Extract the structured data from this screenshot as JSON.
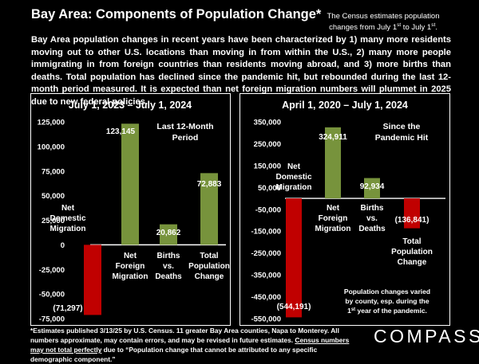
{
  "title": "Bay Area:  Components of Population Change*",
  "top_note": {
    "line1": "The Census estimates population",
    "line2_a": "changes from July 1",
    "sup_a": "st",
    "line2_b": " to July 1",
    "sup_b": "st",
    "line2_c": "."
  },
  "intro": "Bay Area population changes in recent years have been characterized by 1) many more residents moving out to other U.S. locations than moving in from within the U.S., 2) many more people immigrating in from foreign countries than residents moving abroad, and 3) more births than deaths. Total population has declined since the pandemic hit, but rebounded during the last 12-month period measured.  It is expected than net foreign migration numbers will plummet in 2025 due to new federal policies.",
  "chart_data": [
    {
      "type": "bar",
      "title": "July 1, 2023 – July 1, 2024",
      "period_note": [
        "Last 12-Month",
        "Period"
      ],
      "categories": [
        [
          "Net",
          "Domestic",
          "Migration"
        ],
        [
          "Net",
          "Foreign",
          "Migration"
        ],
        [
          "Births",
          "vs.",
          "Deaths"
        ],
        [
          "Total",
          "Population",
          "Change"
        ]
      ],
      "values": [
        -71297,
        123145,
        20862,
        72883
      ],
      "value_labels": [
        "(71,297)",
        "123,145",
        "20,862",
        "72,883"
      ],
      "colors": [
        "#c00000",
        "#77933c",
        "#77933c",
        "#77933c"
      ],
      "ylim": [
        -75000,
        125000
      ],
      "yticks": [
        125000,
        100000,
        75000,
        50000,
        25000,
        0,
        -25000,
        -50000,
        -75000
      ],
      "ytick_labels": [
        "125,000",
        "100,000",
        "75,000",
        "50,000",
        "25,000",
        "0",
        "-25,000",
        "-50,000",
        "-75,000"
      ],
      "grid": false
    },
    {
      "type": "bar",
      "title": "April 1, 2020 – July 1, 2024",
      "period_note": [
        "Since the",
        "Pandemic Hit"
      ],
      "categories": [
        [
          "Net",
          "Domestic",
          "Migration"
        ],
        [
          "Net",
          "Foreign",
          "Migration"
        ],
        [
          "Births",
          "vs.",
          "Deaths"
        ],
        [
          "Total",
          "Population",
          "Change"
        ]
      ],
      "values": [
        -544191,
        324911,
        92934,
        -136841
      ],
      "value_labels": [
        "(544,191)",
        "324,911",
        "92,934",
        "(136,841)"
      ],
      "colors": [
        "#c00000",
        "#77933c",
        "#77933c",
        "#c00000"
      ],
      "ylim": [
        -550000,
        350000
      ],
      "yticks": [
        350000,
        250000,
        150000,
        50000,
        -50000,
        -150000,
        -250000,
        -350000,
        -450000,
        -550000
      ],
      "ytick_labels": [
        "350,000",
        "250,000",
        "150,000",
        "50,000",
        "-50,000",
        "-150,000",
        "-250,000",
        "-350,000",
        "-450,000",
        "-550,000"
      ],
      "annotation": [
        [
          "Population changes varied",
          "",
          ""
        ],
        [
          "by county, esp. during the",
          "",
          ""
        ],
        [
          "1",
          "st",
          " year of the pandemic."
        ]
      ],
      "grid": false
    }
  ],
  "footnote": {
    "text": "*Estimates published 3/13/25 by U.S. Census. 11 greater Bay Area counties, Napa to Monterey. All numbers approximate, may contain errors, and may be revised in future estimates. ",
    "underlined": "Census numbers may not total perfectly",
    "tail": " due to “Population change that cannot be attributed to any specific demographic component.”"
  },
  "brand": "COMPASS"
}
